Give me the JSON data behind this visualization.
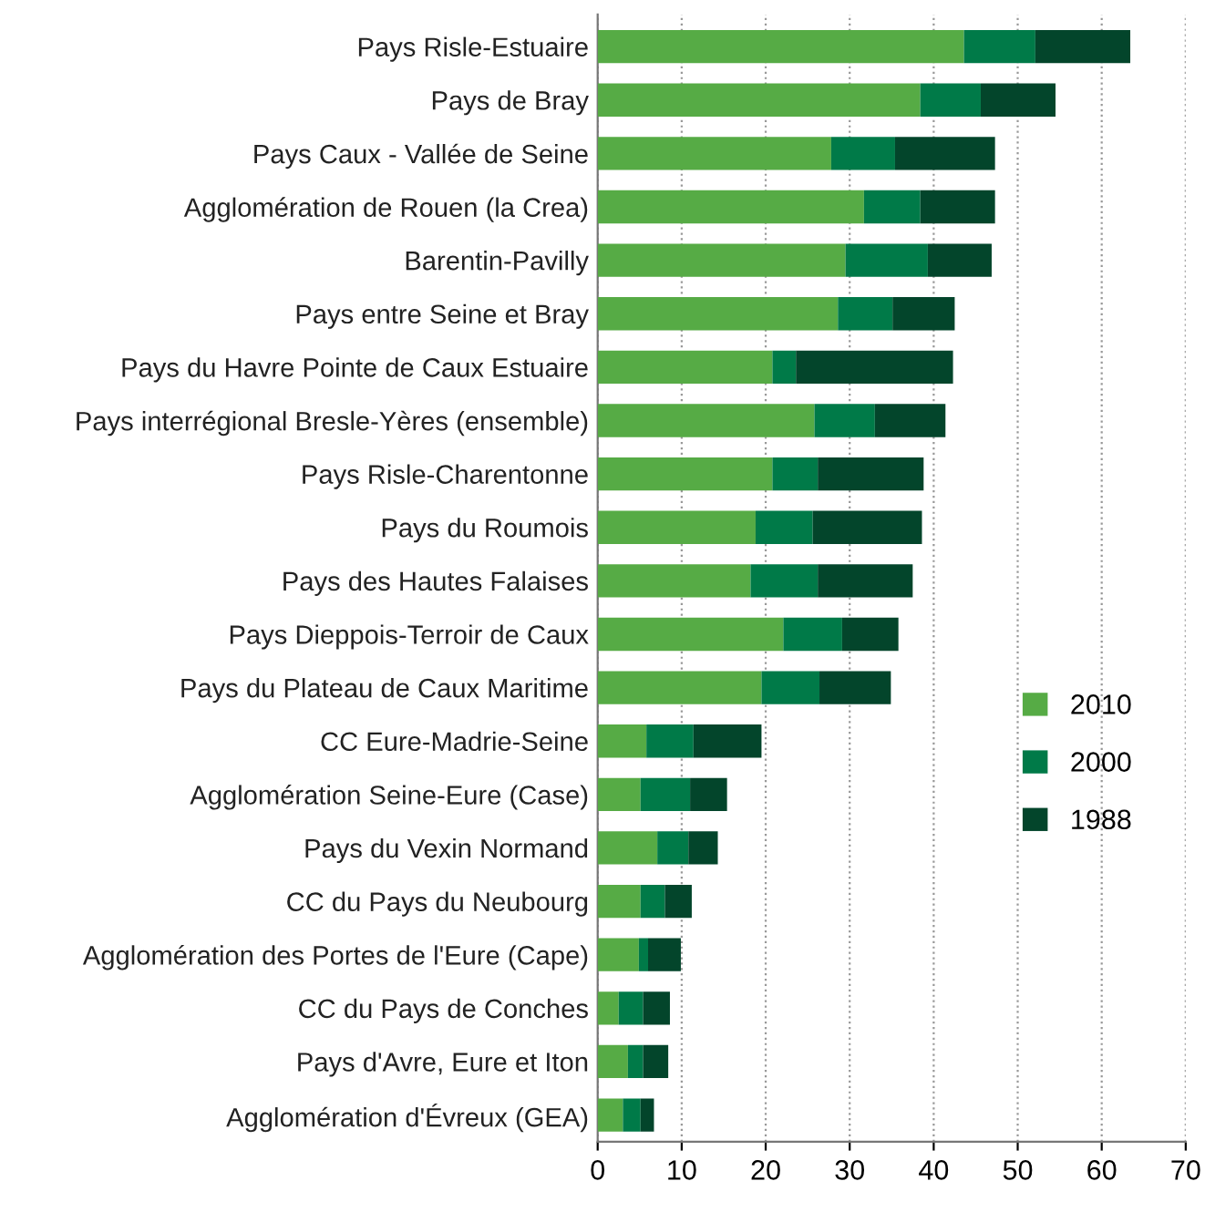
{
  "chart_data": {
    "type": "bar",
    "orientation": "horizontal",
    "stacked": true,
    "categories": [
      "Pays Risle-Estuaire",
      "Pays de Bray",
      "Pays Caux - Vallée de Seine",
      "Agglomération de Rouen (la Crea)",
      "Barentin-Pavilly",
      "Pays entre Seine et Bray",
      "Pays du Havre Pointe de Caux Estuaire",
      "Pays interrégional Bresle-Yères (ensemble)",
      "Pays Risle-Charentonne",
      "Pays du Roumois",
      "Pays des Hautes Falaises",
      "Pays Dieppois-Terroir de Caux",
      "Pays du Plateau de Caux Maritime",
      "CC Eure-Madrie-Seine",
      "Agglomération Seine-Eure (Case)",
      "Pays du Vexin Normand",
      "CC du Pays du Neubourg",
      "Agglomération des Portes de l'Eure (Cape)",
      "CC du Pays de Conches",
      "Pays d'Avre, Eure et Iton",
      "Agglomération d'Évreux (GEA)"
    ],
    "series": [
      {
        "name": "2010",
        "color": "#56ab45",
        "values": [
          43.6,
          38.4,
          27.8,
          31.7,
          29.5,
          28.6,
          20.8,
          25.8,
          20.8,
          18.8,
          18.2,
          22.1,
          19.5,
          5.8,
          5.1,
          7.1,
          5.1,
          4.9,
          2.5,
          3.6,
          3.0
        ]
      },
      {
        "name": "2000",
        "color": "#007a48",
        "values": [
          8.5,
          7.2,
          7.6,
          6.7,
          9.8,
          6.5,
          2.8,
          7.2,
          5.4,
          6.8,
          8.0,
          7.0,
          6.9,
          5.6,
          5.9,
          3.7,
          2.9,
          1.1,
          2.9,
          1.8,
          2.1
        ]
      },
      {
        "name": "1988",
        "color": "#03452b",
        "values": [
          11.3,
          8.9,
          11.9,
          8.9,
          7.6,
          7.4,
          18.7,
          8.4,
          12.6,
          13.0,
          11.3,
          6.7,
          8.5,
          8.1,
          4.4,
          3.5,
          3.2,
          3.9,
          3.2,
          3.0,
          1.6
        ]
      }
    ],
    "xlim": [
      0,
      70
    ],
    "xticks": [
      0,
      10,
      20,
      30,
      40,
      50,
      60,
      70
    ],
    "grid": "x",
    "legend": "right"
  }
}
